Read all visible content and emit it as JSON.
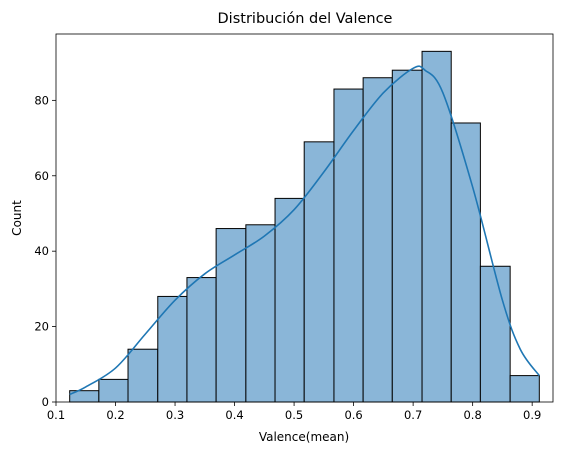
{
  "chart_data": {
    "type": "bar",
    "title": "Distribución del Valence",
    "xlabel": "Valence(mean)",
    "ylabel": "Count",
    "xlim": [
      0.1,
      0.935
    ],
    "ylim": [
      0,
      97.6
    ],
    "xticks": [
      0.1,
      0.2,
      0.3,
      0.4,
      0.5,
      0.6,
      0.7,
      0.8,
      0.9
    ],
    "xtick_labels": [
      "0.1",
      "0.2",
      "0.3",
      "0.4",
      "0.5",
      "0.6",
      "0.7",
      "0.8",
      "0.9"
    ],
    "yticks": [
      0,
      20,
      40,
      60,
      80
    ],
    "ytick_labels": [
      "0",
      "20",
      "40",
      "60",
      "80"
    ],
    "grid": false,
    "bins": [
      {
        "x0": 0.123,
        "x1": 0.172,
        "count": 3
      },
      {
        "x0": 0.172,
        "x1": 0.221,
        "count": 6
      },
      {
        "x0": 0.221,
        "x1": 0.271,
        "count": 14
      },
      {
        "x0": 0.271,
        "x1": 0.32,
        "count": 28
      },
      {
        "x0": 0.32,
        "x1": 0.369,
        "count": 33
      },
      {
        "x0": 0.369,
        "x1": 0.419,
        "count": 46
      },
      {
        "x0": 0.419,
        "x1": 0.468,
        "count": 47
      },
      {
        "x0": 0.468,
        "x1": 0.517,
        "count": 54
      },
      {
        "x0": 0.517,
        "x1": 0.567,
        "count": 69
      },
      {
        "x0": 0.567,
        "x1": 0.616,
        "count": 83
      },
      {
        "x0": 0.616,
        "x1": 0.665,
        "count": 86
      },
      {
        "x0": 0.665,
        "x1": 0.715,
        "count": 88
      },
      {
        "x0": 0.715,
        "x1": 0.764,
        "count": 93
      },
      {
        "x0": 0.764,
        "x1": 0.813,
        "count": 74
      },
      {
        "x0": 0.813,
        "x1": 0.863,
        "count": 36
      },
      {
        "x0": 0.863,
        "x1": 0.912,
        "count": 7
      }
    ],
    "kde": {
      "x": [
        0.123,
        0.15,
        0.2,
        0.25,
        0.3,
        0.35,
        0.4,
        0.45,
        0.5,
        0.55,
        0.6,
        0.65,
        0.7,
        0.72,
        0.75,
        0.8,
        0.85,
        0.88,
        0.912
      ],
      "y": [
        2,
        4,
        9,
        18,
        27,
        34,
        39,
        44,
        51,
        61,
        72,
        82,
        88.5,
        88,
        82,
        57,
        27,
        14,
        7
      ]
    },
    "colors": {
      "bar_fill": "#8ab6d8",
      "bar_edge": "#000000",
      "kde_line": "#1f77b4"
    }
  }
}
